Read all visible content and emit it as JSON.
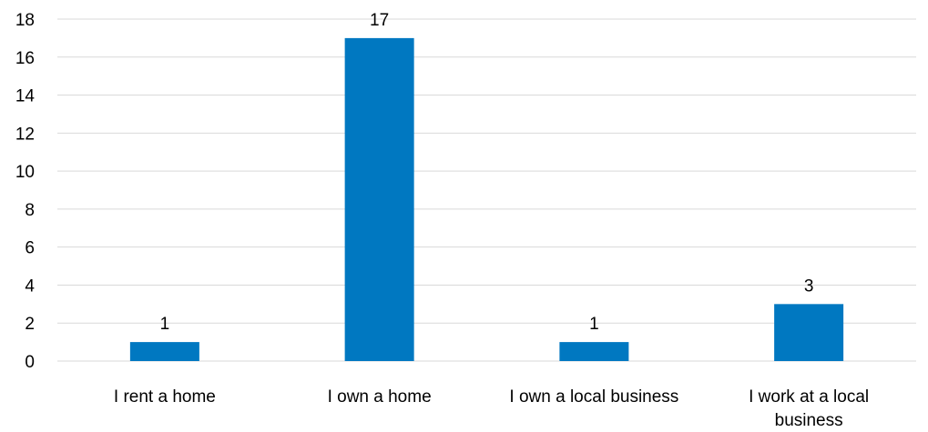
{
  "chart_data": {
    "type": "bar",
    "categories": [
      [
        "I rent a home"
      ],
      [
        "I own a home"
      ],
      [
        "I own a local business"
      ],
      [
        "I work at a local",
        "business"
      ]
    ],
    "values": [
      1,
      17,
      1,
      3
    ],
    "data_labels": [
      "1",
      "17",
      "1",
      "3"
    ],
    "y_ticks": [
      "0",
      "2",
      "4",
      "6",
      "8",
      "10",
      "12",
      "14",
      "16",
      "18"
    ],
    "ylim": [
      0,
      18
    ],
    "grid": true,
    "legend": "none",
    "bar_color": "#0078c1",
    "gridline_color": "#d9d9d9"
  }
}
